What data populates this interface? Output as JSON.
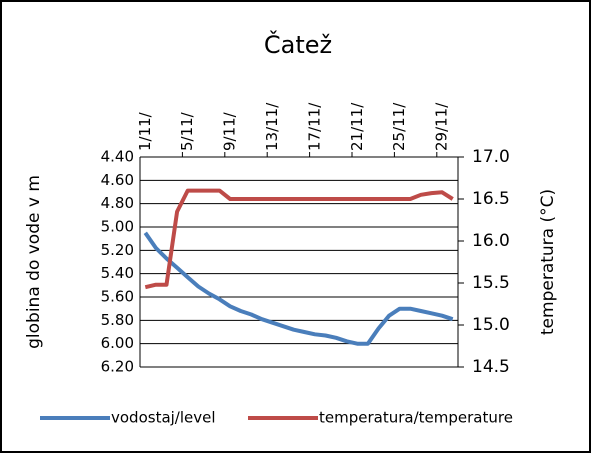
{
  "chart_data": {
    "type": "line",
    "title": "Čatež",
    "categories": [
      "1/11/",
      null,
      null,
      null,
      "5/11/",
      null,
      null,
      null,
      "9/11/",
      null,
      null,
      null,
      "13/11/",
      null,
      null,
      null,
      "17/11/",
      null,
      null,
      null,
      "21/11/",
      null,
      null,
      null,
      "25/11/",
      null,
      null,
      null,
      "29/11/",
      null
    ],
    "ylabel": "globina do vode v m",
    "y2label": "temperatura (°C)",
    "ylim": [
      4.4,
      6.2
    ],
    "yinvert": true,
    "yticks": [
      {
        "value": 4.4,
        "label": "4.40"
      },
      {
        "value": 4.6,
        "label": "4.60"
      },
      {
        "value": 4.8,
        "label": "4.80"
      },
      {
        "value": 5.0,
        "label": "5.00"
      },
      {
        "value": 5.2,
        "label": "5.20"
      },
      {
        "value": 5.4,
        "label": "5.40"
      },
      {
        "value": 5.6,
        "label": "5.60"
      },
      {
        "value": 5.8,
        "label": "5.80"
      },
      {
        "value": 6.0,
        "label": "6.00"
      },
      {
        "value": 6.2,
        "label": "6.20"
      }
    ],
    "y2lim": [
      14.5,
      17.0
    ],
    "y2ticks": [
      {
        "value": 17,
        "label": "17.0"
      },
      16.5,
      {
        "value": 16,
        "label": "16.0"
      },
      15.5,
      {
        "value": 15,
        "label": "15.0"
      },
      14.5
    ],
    "grid": true,
    "legend": "bottom",
    "series": [
      {
        "name": "vodostaj/level",
        "color": "#4a7ebb",
        "values": [
          5.05,
          5.18,
          5.27,
          5.35,
          5.43,
          5.51,
          5.57,
          5.62,
          5.68,
          5.72,
          5.75,
          5.79,
          5.82,
          5.85,
          5.88,
          5.9,
          5.92,
          5.93,
          5.95,
          5.98,
          6.0,
          6.0,
          5.87,
          5.76,
          5.7,
          5.7,
          5.72,
          5.74,
          5.76,
          5.79
        ]
      },
      {
        "name": "temperatura/temperature",
        "color": "#be4b48",
        "axis": "y2",
        "values": [
          15.45,
          15.48,
          15.48,
          16.35,
          16.6,
          16.6,
          16.6,
          16.6,
          16.5,
          16.5,
          16.5,
          16.5,
          16.5,
          16.5,
          16.5,
          16.5,
          16.5,
          16.5,
          16.5,
          16.5,
          16.5,
          16.5,
          16.5,
          16.5,
          16.5,
          16.5,
          16.55,
          16.57,
          16.58,
          16.5
        ]
      }
    ]
  }
}
